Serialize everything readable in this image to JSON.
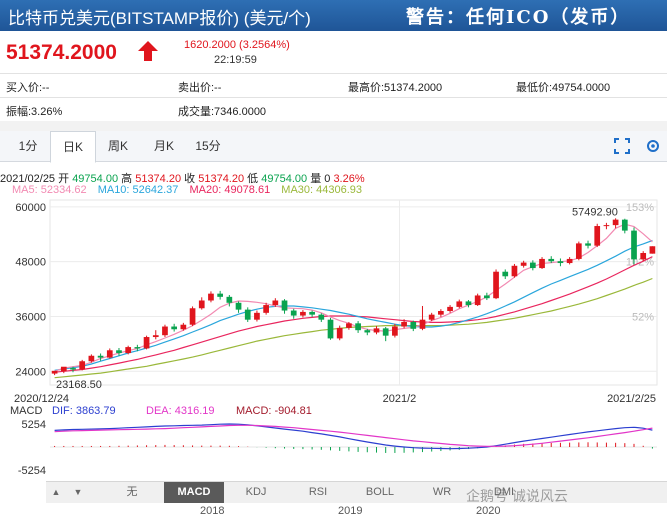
{
  "title": "比特币兑美元(BITSTAMP报价) (美元/个)",
  "warning": "警告：任何ICO（发币）",
  "quote": {
    "price": "51374.2000",
    "change": "1620.2000 (3.2564%)",
    "time": "22:19:59"
  },
  "stats": {
    "bid": "买入价:--",
    "ask": "卖出价:--",
    "high": "最高价:51374.2000",
    "low": "最低价:49754.0000",
    "amp": "振幅:3.26%",
    "vol": "成交量:7346.0000"
  },
  "tabs": [
    "1分",
    "日K",
    "周K",
    "月K",
    "15分"
  ],
  "ohlc": {
    "date": "2021/02/25",
    "open_l": "开",
    "open": "49754.00",
    "high_l": "高",
    "high": "51374.20",
    "close_l": "收",
    "close": "51374.20",
    "low_l": "低",
    "low": "49754.00",
    "vol_l": "量",
    "vol": "0",
    "pct": "3.26%"
  },
  "ma_labels": {
    "ma5": "MA5: 52334.62",
    "ma10": "MA10: 52642.37",
    "ma20": "MA20: 49078.61",
    "ma30": "MA30: 44306.93"
  },
  "colors": {
    "up": "#e0151d",
    "down": "#0aa34f",
    "ma5": "#f28ab2",
    "ma10": "#2aa6dc",
    "ma20": "#e9265e",
    "ma30": "#9ab83a"
  },
  "chart_data": {
    "type": "candlestick",
    "y_ticks": [
      "60000",
      "48000",
      "36000",
      "24000"
    ],
    "right_ticks": [
      "153%",
      "102%",
      "52%"
    ],
    "x_labels": [
      "2020/12/24",
      "2021/2",
      "2021/2/25"
    ],
    "ylim": [
      21000,
      61500
    ],
    "annotations": {
      "max": "57492.90",
      "min": "23168.50"
    },
    "candles": [
      [
        23500,
        24100,
        23168.5,
        24000
      ],
      [
        24000,
        25000,
        23600,
        24700
      ],
      [
        24700,
        24400,
        23800,
        25000
      ],
      [
        24400,
        26200,
        24200,
        26500
      ],
      [
        26200,
        27400,
        25900,
        27700
      ],
      [
        27400,
        27000,
        26300,
        27900
      ],
      [
        27000,
        28600,
        26800,
        29000
      ],
      [
        28600,
        28000,
        27400,
        29100
      ],
      [
        28000,
        29300,
        27700,
        29600
      ],
      [
        29300,
        29000,
        28400,
        29800
      ],
      [
        29000,
        31500,
        28800,
        31800
      ],
      [
        31500,
        31900,
        31000,
        33000
      ],
      [
        31900,
        33800,
        31500,
        34200
      ],
      [
        33800,
        33200,
        32700,
        34400
      ],
      [
        33200,
        34200,
        32900,
        34600
      ],
      [
        34200,
        37800,
        33900,
        38200
      ],
      [
        37800,
        39500,
        37500,
        40200
      ],
      [
        39500,
        41000,
        39100,
        41500
      ],
      [
        41000,
        40300,
        39700,
        41600
      ],
      [
        40300,
        39000,
        38200,
        40700
      ],
      [
        39000,
        37500,
        36800,
        39300
      ],
      [
        37500,
        35300,
        34800,
        38000
      ],
      [
        35300,
        36800,
        34900,
        37300
      ],
      [
        36800,
        38500,
        36400,
        39000
      ],
      [
        38500,
        39500,
        38100,
        40000
      ],
      [
        39500,
        37300,
        36600,
        39800
      ],
      [
        37300,
        36200,
        35500,
        37700
      ],
      [
        36200,
        37000,
        35800,
        37400
      ],
      [
        37000,
        36400,
        35900,
        37300
      ],
      [
        36400,
        35300,
        34800,
        36700
      ],
      [
        35300,
        31200,
        30900,
        35700
      ],
      [
        31200,
        33500,
        30800,
        34000
      ],
      [
        33500,
        34500,
        33100,
        34800
      ],
      [
        34500,
        33000,
        32400,
        35000
      ],
      [
        33000,
        32500,
        31900,
        33300
      ],
      [
        32500,
        33400,
        32100,
        33900
      ],
      [
        33400,
        31800,
        30600,
        33700
      ],
      [
        31800,
        33800,
        31400,
        34400
      ],
      [
        33800,
        34800,
        33400,
        35400
      ],
      [
        34800,
        33300,
        32800,
        35100
      ],
      [
        33300,
        35300,
        33000,
        38300
      ],
      [
        35300,
        36400,
        35000,
        36800
      ],
      [
        36400,
        37200,
        35900,
        37600
      ],
      [
        37200,
        38100,
        36800,
        38500
      ],
      [
        38100,
        39300,
        37800,
        39700
      ],
      [
        39300,
        38500,
        38000,
        39600
      ],
      [
        38500,
        40600,
        38300,
        41000
      ],
      [
        40600,
        40000,
        39600,
        41200
      ],
      [
        40000,
        45800,
        39800,
        46300
      ],
      [
        45800,
        44800,
        44200,
        46300
      ],
      [
        44800,
        47100,
        44500,
        47500
      ],
      [
        47100,
        47800,
        46700,
        48200
      ],
      [
        47800,
        46600,
        46100,
        48300
      ],
      [
        46600,
        48600,
        46400,
        49000
      ],
      [
        48600,
        48100,
        47700,
        49200
      ],
      [
        48100,
        47700,
        47000,
        48700
      ],
      [
        47700,
        48600,
        47400,
        49000
      ],
      [
        48600,
        52000,
        48300,
        52400
      ],
      [
        52000,
        51500,
        50900,
        52600
      ],
      [
        51500,
        55800,
        51200,
        56300
      ],
      [
        55800,
        56000,
        55100,
        56500
      ],
      [
        56000,
        57200,
        55300,
        57492.9
      ],
      [
        57200,
        54800,
        54200,
        57400
      ],
      [
        54800,
        48500,
        47400,
        55500
      ],
      [
        48500,
        49900,
        48100,
        50300
      ],
      [
        49754,
        51374.2,
        49754,
        51374.2
      ]
    ],
    "ma5": [
      24000,
      24700,
      25000,
      25300,
      26000,
      26800,
      27400,
      28000,
      28500,
      29000,
      29800,
      30500,
      31300,
      32100,
      33000,
      34000,
      35200,
      36500,
      38000,
      38900,
      39400,
      39300,
      39100,
      38800,
      38300,
      37900,
      37800,
      37700,
      37400,
      36800,
      35900,
      35100,
      34500,
      33700,
      33200,
      32900,
      32800,
      33100,
      33400,
      33600,
      34200,
      35100,
      35800,
      36700,
      37700,
      38500,
      39300,
      40300,
      41700,
      43100,
      44600,
      46100,
      46900,
      47600,
      47800,
      48000,
      48200,
      48800,
      50000,
      51500,
      53100,
      55300,
      56200,
      55700,
      54100,
      52334.62
    ],
    "ma10": [
      24200,
      24500,
      24800,
      25100,
      25600,
      26200,
      26800,
      27400,
      28000,
      28500,
      29100,
      29700,
      30400,
      31100,
      31800,
      32600,
      33400,
      34200,
      35100,
      35800,
      36500,
      37100,
      37600,
      38000,
      38200,
      38300,
      38300,
      38100,
      37900,
      37600,
      37300,
      36900,
      36500,
      36000,
      35500,
      35100,
      34700,
      34300,
      34000,
      33800,
      33700,
      33700,
      33900,
      34200,
      34700,
      35300,
      35900,
      36600,
      37400,
      38300,
      39200,
      40200,
      41200,
      42200,
      43100,
      43900,
      44700,
      45500,
      46300,
      47200,
      48200,
      49200,
      50300,
      51200,
      51900,
      52642.37
    ],
    "ma20": [
      23800,
      24000,
      24200,
      24400,
      24700,
      25000,
      25400,
      25800,
      26200,
      26600,
      27100,
      27600,
      28100,
      28600,
      29200,
      29800,
      30400,
      31000,
      31600,
      32200,
      32800,
      33300,
      33800,
      34200,
      34600,
      35000,
      35300,
      35600,
      35800,
      36000,
      36100,
      36100,
      36100,
      36000,
      35900,
      35700,
      35500,
      35300,
      35100,
      34900,
      34800,
      34700,
      34700,
      34800,
      34900,
      35100,
      35300,
      35600,
      36000,
      36500,
      37000,
      37600,
      38200,
      38800,
      39500,
      40200,
      40900,
      41700,
      42500,
      43300,
      44200,
      45200,
      46200,
      47200,
      48100,
      49078.61
    ],
    "ma30": [
      22600,
      22800,
      23000,
      23200,
      23400,
      23600,
      23900,
      24200,
      24500,
      24800,
      25100,
      25500,
      25900,
      26300,
      26700,
      27100,
      27600,
      28100,
      28600,
      29100,
      29600,
      30100,
      30600,
      31000,
      31400,
      31800,
      32100,
      32400,
      32700,
      33000,
      33200,
      33400,
      33600,
      33700,
      33800,
      33900,
      34000,
      34000,
      34000,
      34000,
      34000,
      34000,
      34000,
      34100,
      34200,
      34300,
      34500,
      34700,
      35000,
      35300,
      35600,
      36000,
      36400,
      36800,
      37200,
      37700,
      38200,
      38700,
      39300,
      39900,
      40600,
      41300,
      42000,
      42800,
      43500,
      44306.93
    ],
    "macd_legend": {
      "name": "MACD",
      "dif": "DIF: 3863.79",
      "dea": "DEA: 4316.19",
      "macd": "MACD: -904.81"
    },
    "macd_ticks": [
      "5254",
      "-5254"
    ],
    "macd_range": 5254,
    "dif": [
      3800,
      3900,
      4000,
      4050,
      4100,
      4150,
      4200,
      4300,
      4400,
      4500,
      4600,
      4700,
      4800,
      4850,
      4900,
      4950,
      5000,
      5100,
      5200,
      5254,
      5200,
      5050,
      4850,
      4600,
      4350,
      4100,
      3850,
      3600,
      3300,
      3000,
      2650,
      2300,
      1900,
      1500,
      1150,
      800,
      450,
      200,
      0,
      -150,
      -250,
      -300,
      -350,
      -380,
      -350,
      -280,
      -150,
      0,
      300,
      650,
      1000,
      1350,
      1650,
      1950,
      2250,
      2550,
      2850,
      3150,
      3450,
      3700,
      3950,
      4200,
      4400,
      4500,
      4300,
      3863.79
    ],
    "dea": [
      3500,
      3600,
      3700,
      3750,
      3800,
      3850,
      3900,
      3950,
      4000,
      4050,
      4100,
      4150,
      4200,
      4300,
      4400,
      4500,
      4600,
      4700,
      4800,
      4900,
      4950,
      4950,
      4900,
      4800,
      4700,
      4550,
      4400,
      4200,
      4000,
      3800,
      3600,
      3400,
      3150,
      2900,
      2650,
      2400,
      2150,
      1900,
      1650,
      1400,
      1200,
      1000,
      800,
      600,
      450,
      300,
      200,
      150,
      150,
      200,
      300,
      450,
      650,
      850,
      1100,
      1350,
      1600,
      1850,
      2100,
      2400,
      2700,
      3000,
      3300,
      3600,
      3950,
      4316.19
    ],
    "volume_axis_years": [
      "2018",
      "2019",
      "2020"
    ]
  },
  "toolbar": [
    "无",
    "MACD",
    "KDJ",
    "RSI",
    "BOLL",
    "WR",
    "DMI"
  ],
  "watermark": "企鹅号 诚说风云"
}
